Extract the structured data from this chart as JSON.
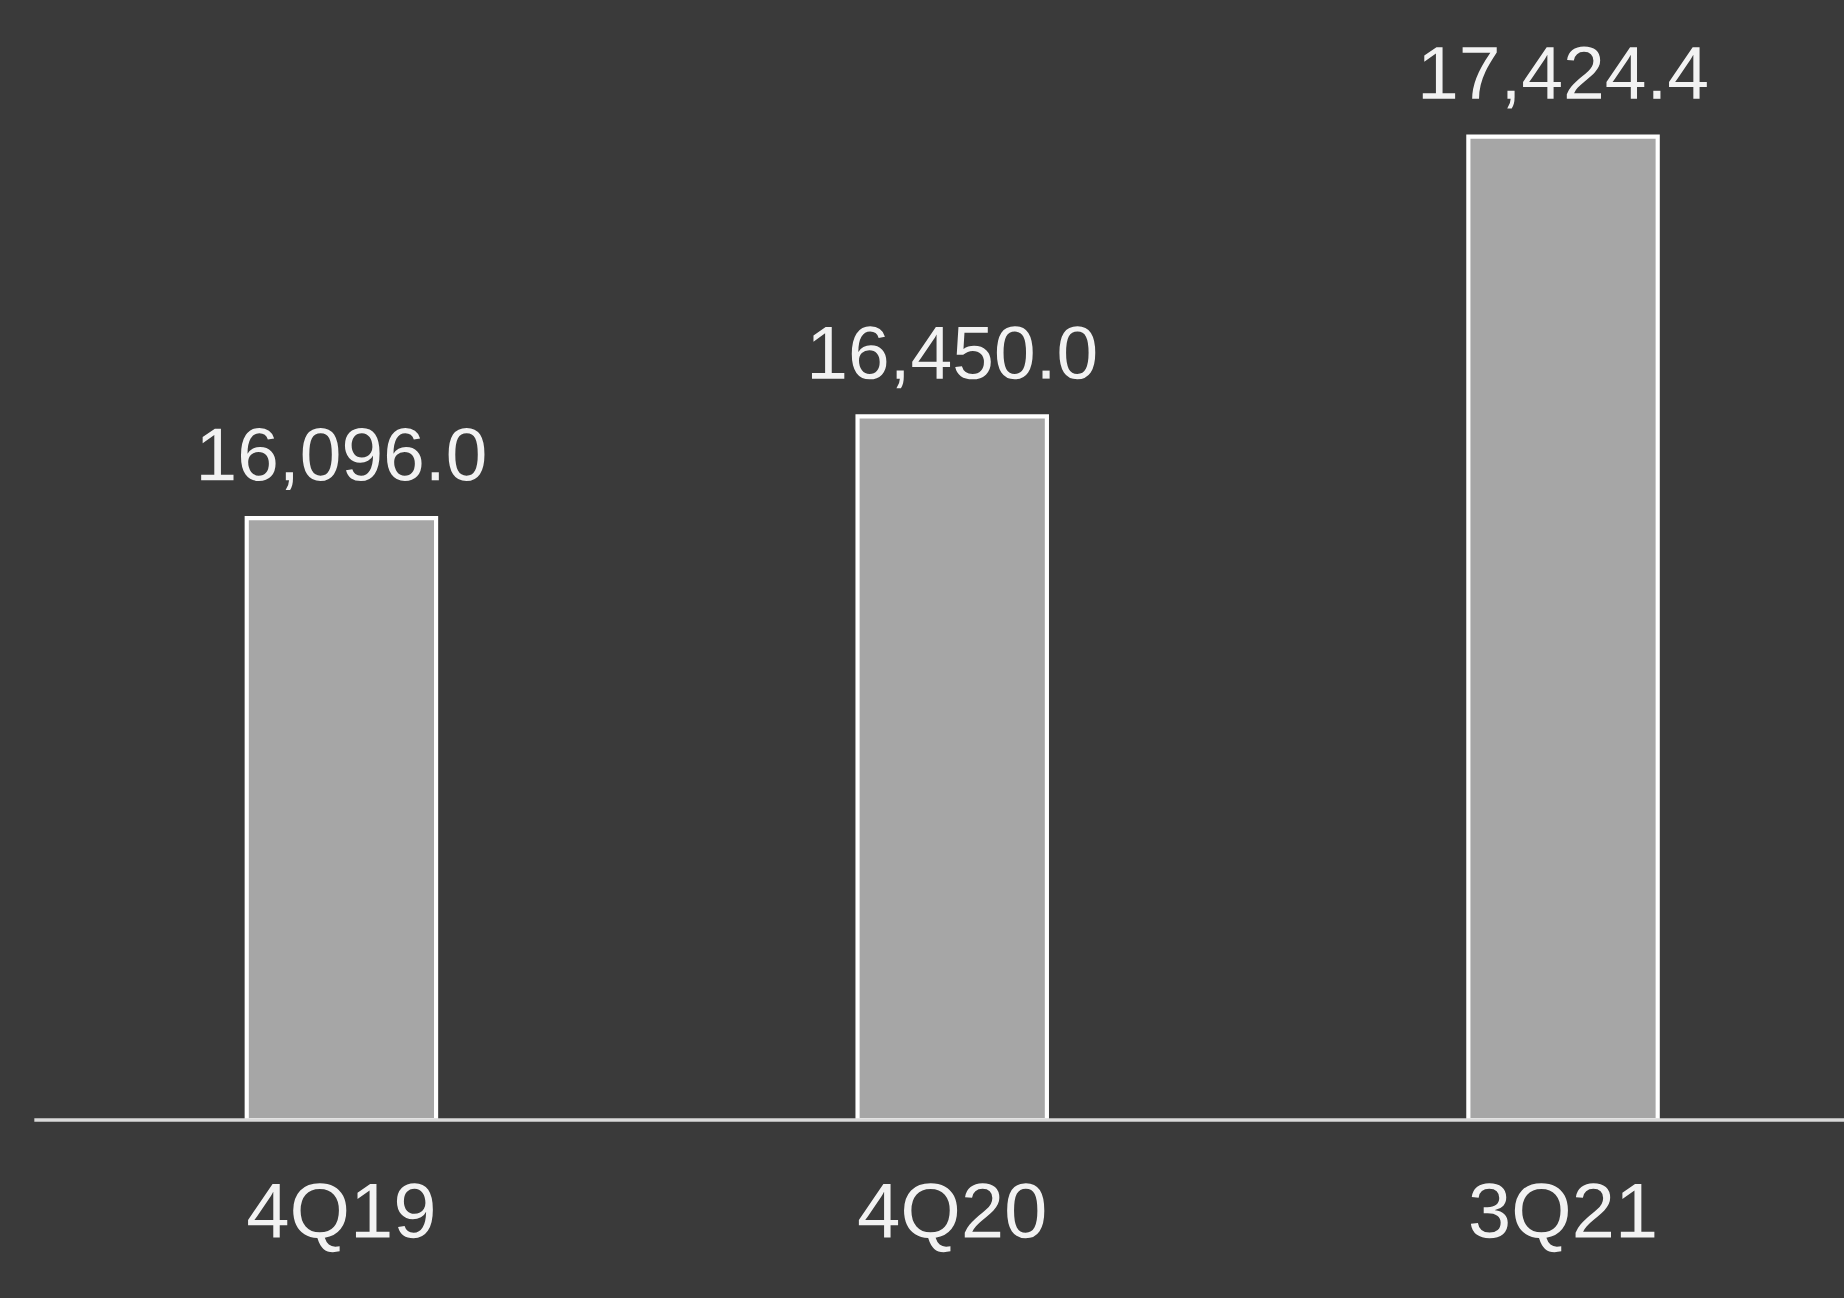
{
  "chart_data": {
    "type": "bar",
    "categories": [
      "4Q19",
      "4Q20",
      "3Q21"
    ],
    "values": [
      16096.0,
      16450.0,
      17424.4
    ],
    "value_labels": [
      "16,096.0",
      "16,450.0",
      "17,424.4"
    ],
    "color": "#a6a6a6",
    "ylim": [
      14000,
      17900
    ],
    "grid": false,
    "legend": false
  }
}
